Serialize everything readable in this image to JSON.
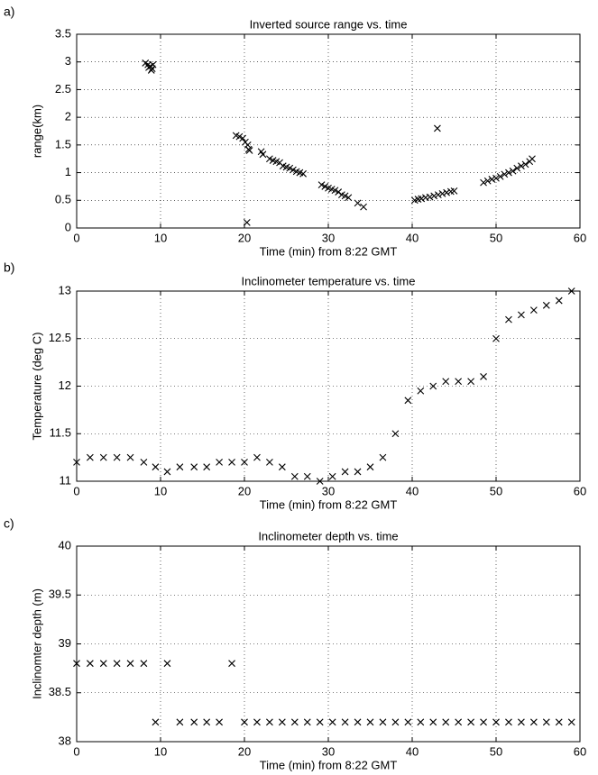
{
  "chart_data": [
    {
      "type": "scatter",
      "label": "a)",
      "title": "Inverted source range vs. time",
      "xlabel": "Time (min) from 8:22 GMT",
      "ylabel": "range(km)",
      "x": [
        8.2,
        8.5,
        8.8,
        9.0,
        8.6,
        9.1,
        8.9,
        19.0,
        19.4,
        19.8,
        20.1,
        20.4,
        20.5,
        20.6,
        20.3,
        22.0,
        22.2,
        23.0,
        23.4,
        23.8,
        24.2,
        24.6,
        25.0,
        25.4,
        25.8,
        26.2,
        26.6,
        27.0,
        29.2,
        29.6,
        30.0,
        30.4,
        30.8,
        31.2,
        31.6,
        32.0,
        32.4,
        33.5,
        34.2,
        40.3,
        40.7,
        41.1,
        41.6,
        42.1,
        42.6,
        43.1,
        43.6,
        44.1,
        44.6,
        45.0,
        43.0,
        48.5,
        49.0,
        49.5,
        50.0,
        50.5,
        51.0,
        51.5,
        52.0,
        52.5,
        53.0,
        53.5,
        54.0,
        54.3
      ],
      "values": [
        2.98,
        2.95,
        2.92,
        2.88,
        2.9,
        2.95,
        2.85,
        1.67,
        1.65,
        1.62,
        1.55,
        1.5,
        1.42,
        1.4,
        0.1,
        1.38,
        1.33,
        1.25,
        1.22,
        1.2,
        1.18,
        1.12,
        1.1,
        1.08,
        1.05,
        1.02,
        1.0,
        0.98,
        0.78,
        0.75,
        0.72,
        0.7,
        0.68,
        0.65,
        0.6,
        0.58,
        0.55,
        0.45,
        0.38,
        0.5,
        0.52,
        0.53,
        0.55,
        0.56,
        0.58,
        0.6,
        0.62,
        0.64,
        0.66,
        0.67,
        1.8,
        0.82,
        0.85,
        0.88,
        0.9,
        0.93,
        0.97,
        1.0,
        1.03,
        1.08,
        1.12,
        1.15,
        1.2,
        1.25
      ],
      "xlim": [
        0,
        60
      ],
      "xticks": [
        0,
        10,
        20,
        30,
        40,
        50,
        60
      ],
      "ylim": [
        0,
        3.5
      ],
      "yticks": [
        0,
        0.5,
        1,
        1.5,
        2,
        2.5,
        3,
        3.5
      ],
      "grid": true,
      "color": "#000000",
      "marker": "x"
    },
    {
      "type": "scatter",
      "label": "b)",
      "title": "Inclinometer temperature vs. time",
      "xlabel": "Time (min) from 8:22 GMT",
      "ylabel": "Temperature (deg C)",
      "x": [
        0,
        1.6,
        3.2,
        4.8,
        6.4,
        8.0,
        9.4,
        10.8,
        12.3,
        14.0,
        15.5,
        17.0,
        18.5,
        20.0,
        21.5,
        23.0,
        24.5,
        26.0,
        27.5,
        29.0,
        30.5,
        32.0,
        33.5,
        35.0,
        36.5,
        38.0,
        39.5,
        41.0,
        42.5,
        44.0,
        45.5,
        47.0,
        48.5,
        50.0,
        51.5,
        53.0,
        54.5,
        56.0,
        57.5,
        59.0
      ],
      "values": [
        11.2,
        11.25,
        11.25,
        11.25,
        11.25,
        11.2,
        11.15,
        11.1,
        11.15,
        11.15,
        11.15,
        11.2,
        11.2,
        11.2,
        11.25,
        11.2,
        11.15,
        11.05,
        11.05,
        11.0,
        11.05,
        11.1,
        11.1,
        11.15,
        11.25,
        11.5,
        11.85,
        11.95,
        12.0,
        12.05,
        12.05,
        12.05,
        12.1,
        12.5,
        12.7,
        12.75,
        12.8,
        12.85,
        12.9,
        13.0
      ],
      "xlim": [
        0,
        60
      ],
      "xticks": [
        0,
        10,
        20,
        30,
        40,
        50,
        60
      ],
      "ylim": [
        11,
        13
      ],
      "yticks": [
        11,
        11.5,
        12,
        12.5,
        13
      ],
      "grid": true,
      "color": "#000000",
      "marker": "x"
    },
    {
      "type": "scatter",
      "label": "c)",
      "title": "Inclinometer depth vs. time",
      "xlabel": "Time (min) from 8:22 GMT",
      "ylabel": "Inclinomter depth (m)",
      "x": [
        0,
        1.6,
        3.2,
        4.8,
        6.4,
        8.0,
        9.4,
        10.8,
        12.3,
        14.0,
        15.5,
        17.0,
        18.5,
        20.0,
        21.5,
        23.0,
        24.5,
        26.0,
        27.5,
        29.0,
        30.5,
        32.0,
        33.5,
        35.0,
        36.5,
        38.0,
        39.5,
        41.0,
        42.5,
        44.0,
        45.5,
        47.0,
        48.5,
        50.0,
        51.5,
        53.0,
        54.5,
        56.0,
        57.5,
        59.0
      ],
      "values": [
        38.8,
        38.8,
        38.8,
        38.8,
        38.8,
        38.8,
        38.2,
        38.8,
        38.2,
        38.2,
        38.2,
        38.2,
        38.8,
        38.2,
        38.2,
        38.2,
        38.2,
        38.2,
        38.2,
        38.2,
        38.2,
        38.2,
        38.2,
        38.2,
        38.2,
        38.2,
        38.2,
        38.2,
        38.2,
        38.2,
        38.2,
        38.2,
        38.2,
        38.2,
        38.2,
        38.2,
        38.2,
        38.2,
        38.2,
        38.2
      ],
      "xlim": [
        0,
        60
      ],
      "xticks": [
        0,
        10,
        20,
        30,
        40,
        50,
        60
      ],
      "ylim": [
        38,
        40
      ],
      "yticks": [
        38,
        38.5,
        39,
        39.5,
        40
      ],
      "grid": true,
      "color": "#000000",
      "marker": "x"
    }
  ]
}
